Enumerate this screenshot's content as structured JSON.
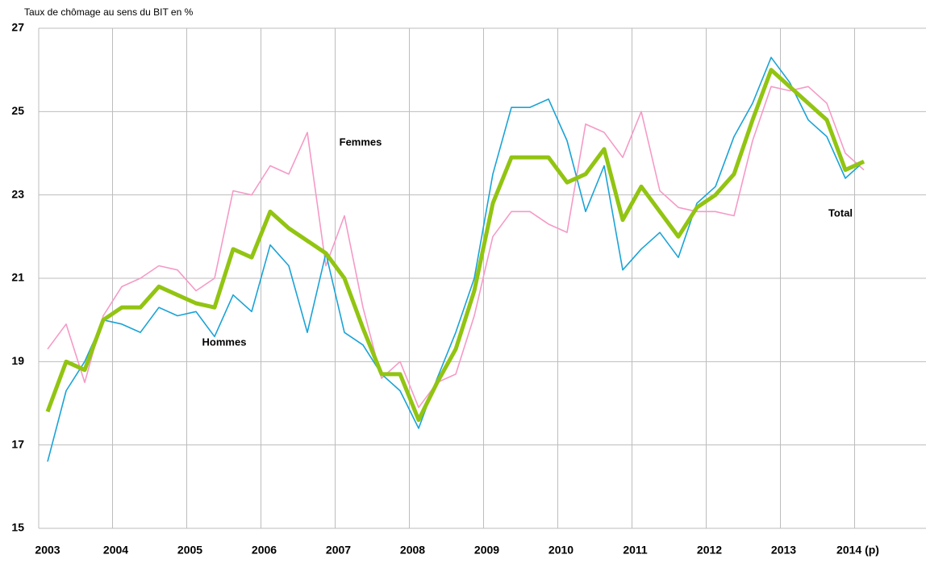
{
  "chart_data": {
    "type": "line",
    "y_label": "Taux de chômage au sens du BIT en %",
    "categories": [
      "2003",
      null,
      null,
      null,
      "2004",
      null,
      null,
      null,
      "2005",
      null,
      null,
      null,
      "2006",
      null,
      null,
      null,
      "2007",
      null,
      null,
      null,
      "2008",
      null,
      null,
      null,
      "2009",
      null,
      null,
      null,
      "2010",
      null,
      null,
      null,
      "2011",
      null,
      null,
      null,
      "2012",
      null,
      null,
      null,
      "2013",
      null,
      null,
      null,
      "2014 (p)"
    ],
    "series": [
      {
        "name": "Femmes",
        "color": "#f59ac6",
        "values": [
          19.3,
          19.9,
          18.5,
          20.1,
          20.8,
          21.0,
          21.3,
          21.2,
          20.7,
          21.0,
          23.1,
          23.0,
          23.7,
          23.5,
          24.5,
          21.3,
          22.5,
          20.3,
          18.6,
          19.0,
          17.9,
          18.5,
          18.7,
          20.1,
          22.0,
          22.6,
          22.6,
          22.3,
          22.1,
          24.7,
          24.5,
          23.9,
          25.0,
          23.1,
          22.7,
          22.6,
          22.6,
          22.5,
          24.3,
          25.6,
          25.5,
          25.6,
          25.2,
          24.0,
          23.6
        ]
      },
      {
        "name": "Hommes",
        "color": "#1aa3d6",
        "values": [
          16.6,
          18.3,
          19.0,
          20.0,
          19.9,
          19.7,
          20.3,
          20.1,
          20.2,
          19.6,
          20.6,
          20.2,
          21.8,
          21.3,
          19.7,
          21.6,
          19.7,
          19.4,
          18.7,
          18.3,
          17.4,
          18.6,
          19.7,
          21.0,
          23.5,
          25.1,
          25.1,
          25.3,
          24.3,
          22.6,
          23.7,
          21.2,
          21.7,
          22.1,
          21.5,
          22.8,
          23.2,
          24.4,
          25.2,
          26.3,
          25.7,
          24.8,
          24.4,
          23.4,
          23.8
        ]
      },
      {
        "name": "Total",
        "color": "#92c412",
        "values": [
          17.8,
          19.0,
          18.8,
          20.0,
          20.3,
          20.3,
          20.8,
          20.6,
          20.4,
          20.3,
          21.7,
          21.5,
          22.6,
          22.2,
          21.9,
          21.6,
          21.0,
          19.8,
          18.7,
          18.7,
          17.6,
          18.5,
          19.3,
          20.7,
          22.8,
          23.9,
          23.9,
          23.9,
          23.3,
          23.5,
          24.1,
          22.4,
          23.2,
          22.6,
          22.0,
          22.7,
          23.0,
          23.5,
          24.8,
          26.0,
          25.6,
          25.2,
          24.8,
          23.6,
          23.8
        ]
      }
    ],
    "ylim": [
      15,
      27
    ],
    "yticks": [
      15,
      17,
      19,
      21,
      23,
      25,
      27
    ],
    "grid": true
  }
}
